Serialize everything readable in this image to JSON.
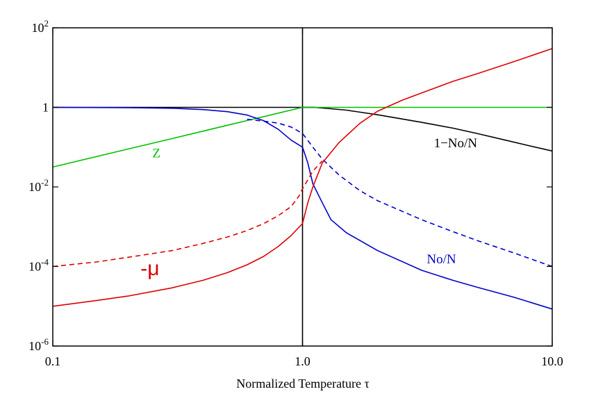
{
  "chart_data": {
    "type": "line",
    "xlabel": "Normalized Temperature τ",
    "xscale": "log",
    "yscale": "log",
    "xlim": [
      0.1,
      10.0
    ],
    "ylim": [
      1e-06,
      100
    ],
    "x_ticks": [
      {
        "value": 0.1,
        "label": "0.1"
      },
      {
        "value": 1.0,
        "label": "1.0"
      },
      {
        "value": 10.0,
        "label": "10.0"
      }
    ],
    "y_ticks": [
      {
        "value": 1e-06,
        "base": "10",
        "exp": "-6"
      },
      {
        "value": 0.0001,
        "base": "10",
        "exp": "-4"
      },
      {
        "value": 0.01,
        "base": "10",
        "exp": "-2"
      },
      {
        "value": 1,
        "base": "1",
        "exp": ""
      },
      {
        "value": 100,
        "base": "10",
        "exp": "2"
      }
    ],
    "grid": false,
    "reference_lines": [
      {
        "axis": "x",
        "value": 1.0,
        "color": "#000000"
      },
      {
        "axis": "y",
        "value": 1.0,
        "color": "#000000",
        "x_to": 1.12
      }
    ],
    "series": [
      {
        "name": "1−No/N",
        "color": "#000000",
        "dashed": false,
        "x": [
          1.0,
          1.12,
          1.5,
          2.0,
          3.0,
          4.0,
          5.0,
          6.5,
          8.0,
          10.0
        ],
        "y": [
          1.0,
          1.0,
          0.85,
          0.65,
          0.42,
          0.3,
          0.22,
          0.15,
          0.11,
          0.08
        ]
      },
      {
        "name": "Z",
        "color": "#00c000",
        "dashed": false,
        "x": [
          0.1,
          0.2,
          0.3,
          0.4,
          0.5,
          0.6,
          0.7,
          0.8,
          0.9,
          1.0,
          1.12,
          1.5,
          2.0,
          5.0,
          10.0
        ],
        "y": [
          0.0316,
          0.0894,
          0.164,
          0.253,
          0.354,
          0.465,
          0.586,
          0.716,
          0.854,
          1.0,
          1.0,
          1.0,
          1.0,
          1.0,
          1.0
        ]
      },
      {
        "name": "No/N",
        "color": "#0000cc",
        "dashed": false,
        "x": [
          0.1,
          0.2,
          0.3,
          0.4,
          0.5,
          0.6,
          0.7,
          0.8,
          0.9,
          1.0,
          1.05,
          1.1,
          1.2,
          1.3,
          1.5,
          2.0,
          3.0,
          4.0,
          5.0,
          7.0,
          10.0
        ],
        "y": [
          1.0,
          0.98,
          0.95,
          0.88,
          0.78,
          0.64,
          0.46,
          0.28,
          0.15,
          0.1,
          0.04,
          0.012,
          0.004,
          0.0015,
          0.0007,
          0.00025,
          8e-05,
          4.5e-05,
          3e-05,
          1.7e-05,
          8.5e-06
        ]
      },
      {
        "name": "No/N (dashed)",
        "color": "#0000cc",
        "dashed": true,
        "x": [
          0.6,
          0.7,
          0.8,
          0.9,
          1.0,
          1.1,
          1.2,
          1.4,
          1.7,
          2.0,
          3.0,
          4.0,
          5.0,
          7.0,
          10.0
        ],
        "y": [
          0.5,
          0.45,
          0.4,
          0.32,
          0.22,
          0.1,
          0.05,
          0.02,
          0.008,
          0.0045,
          0.0015,
          0.00075,
          0.00045,
          0.00022,
          0.0001
        ]
      },
      {
        "name": "-μ",
        "color": "#dd0000",
        "dashed": false,
        "x": [
          0.1,
          0.15,
          0.2,
          0.3,
          0.4,
          0.5,
          0.6,
          0.7,
          0.8,
          0.9,
          1.0,
          1.05,
          1.1,
          1.2,
          1.4,
          1.7,
          2.0,
          2.5,
          3.0,
          4.0,
          5.0,
          7.0,
          10.0
        ],
        "y": [
          1e-05,
          1.4e-05,
          1.8e-05,
          2.9e-05,
          4.5e-05,
          7e-05,
          0.00011,
          0.00018,
          0.00032,
          0.0006,
          0.0012,
          0.004,
          0.01,
          0.04,
          0.13,
          0.4,
          0.8,
          1.5,
          2.3,
          4.5,
          7.0,
          14.0,
          30.0
        ]
      },
      {
        "name": "-μ (dashed)",
        "color": "#dd0000",
        "dashed": true,
        "x": [
          0.1,
          0.15,
          0.2,
          0.3,
          0.4,
          0.5,
          0.6,
          0.7,
          0.8,
          0.9,
          0.97,
          1.0,
          1.05,
          1.1,
          1.2
        ],
        "y": [
          0.0001,
          0.00013,
          0.00017,
          0.00025,
          0.00038,
          0.00055,
          0.0008,
          0.0012,
          0.0019,
          0.0032,
          0.006,
          0.009,
          0.015,
          0.025,
          0.045
        ]
      }
    ],
    "annotations": [
      {
        "text": "Z",
        "x": 0.26,
        "y": 0.055,
        "color": "#00c000",
        "style": "series"
      },
      {
        "text": "1−No/N",
        "x": 4.1,
        "y": 0.1,
        "color": "#000000",
        "style": "series"
      },
      {
        "text": "No/N",
        "x": 3.6,
        "y": 0.00012,
        "color": "#0000cc",
        "style": "series"
      },
      {
        "text": "-μ",
        "x": 0.245,
        "y": 6e-05,
        "color": "#dd0000",
        "style": "mu"
      }
    ]
  }
}
